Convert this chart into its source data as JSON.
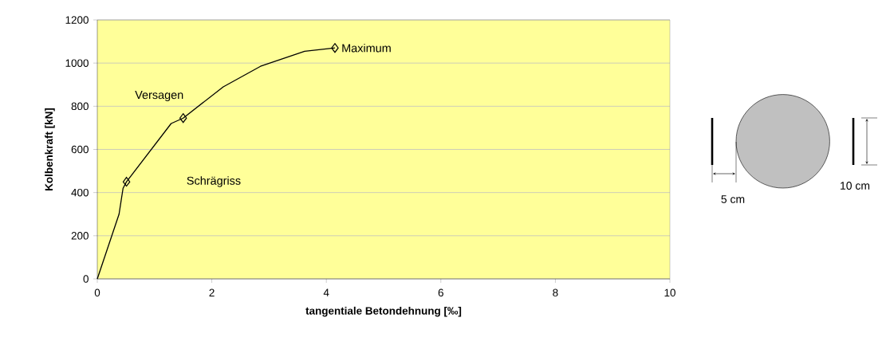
{
  "chart_data": {
    "type": "line",
    "xlabel": "tangentiale Betondehnung [‰]",
    "ylabel": "Kolbenkraft [kN]",
    "series": [
      {
        "color": "#000000",
        "marker": "none",
        "x": [
          0,
          0.38,
          0.45,
          0.51,
          1.29,
          1.5,
          2.2,
          2.85,
          3.62,
          4.15
        ],
        "values": [
          0,
          300,
          420,
          450,
          720,
          745,
          890,
          985,
          1055,
          1070
        ]
      },
      {
        "type": "scatter",
        "color": "#000000",
        "marker": "diamond",
        "x": [
          0.51,
          1.5,
          4.15
        ],
        "values": [
          450,
          745,
          1070
        ]
      }
    ],
    "xlim": [
      0,
      10
    ],
    "ylim": [
      0,
      1200
    ],
    "xticks": [
      0,
      2,
      4,
      6,
      8,
      10
    ],
    "yticks": [
      0,
      200,
      400,
      600,
      800,
      1000,
      1200
    ],
    "grid": "y",
    "annotations": [
      {
        "text": "Maximum",
        "x": 4.15,
        "y": 1070
      },
      {
        "text": "Versagen",
        "x": 1.5,
        "y": 745
      },
      "Schrägriss",
      "5 cm",
      "10 cm"
    ]
  }
}
